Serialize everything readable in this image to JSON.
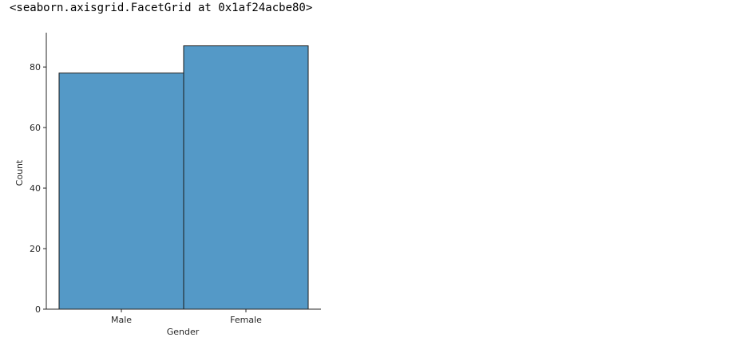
{
  "output": {
    "repr_text": "<seaborn.axisgrid.FacetGrid at 0x1af24acbe80>"
  },
  "chart_data": {
    "type": "bar",
    "categories": [
      "Male",
      "Female"
    ],
    "values": [
      78,
      87
    ],
    "xlabel": "Gender",
    "ylabel": "Count",
    "ylim": [
      0,
      91.35
    ],
    "yticks": [
      0,
      20,
      40,
      60,
      80
    ],
    "grid": false,
    "bar_color": "#5499c7",
    "edge_color": "#1a1a1a",
    "spine_color": "#262626"
  }
}
